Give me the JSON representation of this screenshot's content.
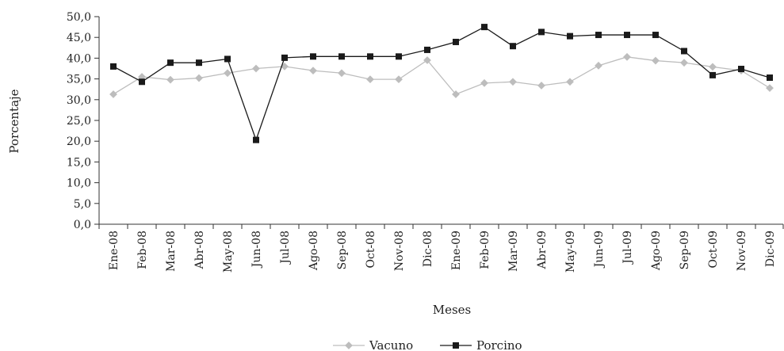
{
  "chart_data": {
    "type": "line",
    "title": "",
    "xlabel": "Meses",
    "ylabel": "Porcentaje",
    "ylim": [
      0,
      50
    ],
    "yticks": [
      0,
      5,
      10,
      15,
      20,
      25,
      30,
      35,
      40,
      45,
      50
    ],
    "ytick_labels": [
      "0,0",
      "5,0",
      "10,0",
      "15,0",
      "20,0",
      "25,0",
      "30,0",
      "35,0",
      "40,0",
      "45,0",
      "50,0"
    ],
    "grid": false,
    "legend_position": "bottom",
    "categories": [
      "Ene-08",
      "Feb-08",
      "Mar-08",
      "Abr-08",
      "May-08",
      "Jun-08",
      "Jul-08",
      "Ago-08",
      "Sep-08",
      "Oct-08",
      "Nov-08",
      "Dic-08",
      "Ene-09",
      "Feb-09",
      "Mar-09",
      "Abr-09",
      "May-09",
      "Jun-09",
      "Jul-09",
      "Ago-09",
      "Sep-09",
      "Oct-09",
      "Nov-09",
      "Dic-09"
    ],
    "series": [
      {
        "name": "Vacuno",
        "marker": "diamond",
        "color": "#bdbdbd",
        "values": [
          31.3,
          35.5,
          34.8,
          35.2,
          36.4,
          37.5,
          38.0,
          37.0,
          36.4,
          34.9,
          34.9,
          39.5,
          31.3,
          34.0,
          34.3,
          33.4,
          34.3,
          38.2,
          40.3,
          39.4,
          38.9,
          37.9,
          37.0,
          32.8
        ]
      },
      {
        "name": "Porcino",
        "marker": "square",
        "color": "#1a1a1a",
        "values": [
          38.0,
          34.3,
          38.9,
          38.9,
          39.8,
          20.3,
          40.1,
          40.4,
          40.4,
          40.4,
          40.4,
          42.0,
          43.9,
          47.5,
          42.9,
          46.3,
          45.3,
          45.6,
          45.6,
          45.6,
          41.7,
          35.9,
          37.4,
          35.3
        ]
      }
    ]
  }
}
